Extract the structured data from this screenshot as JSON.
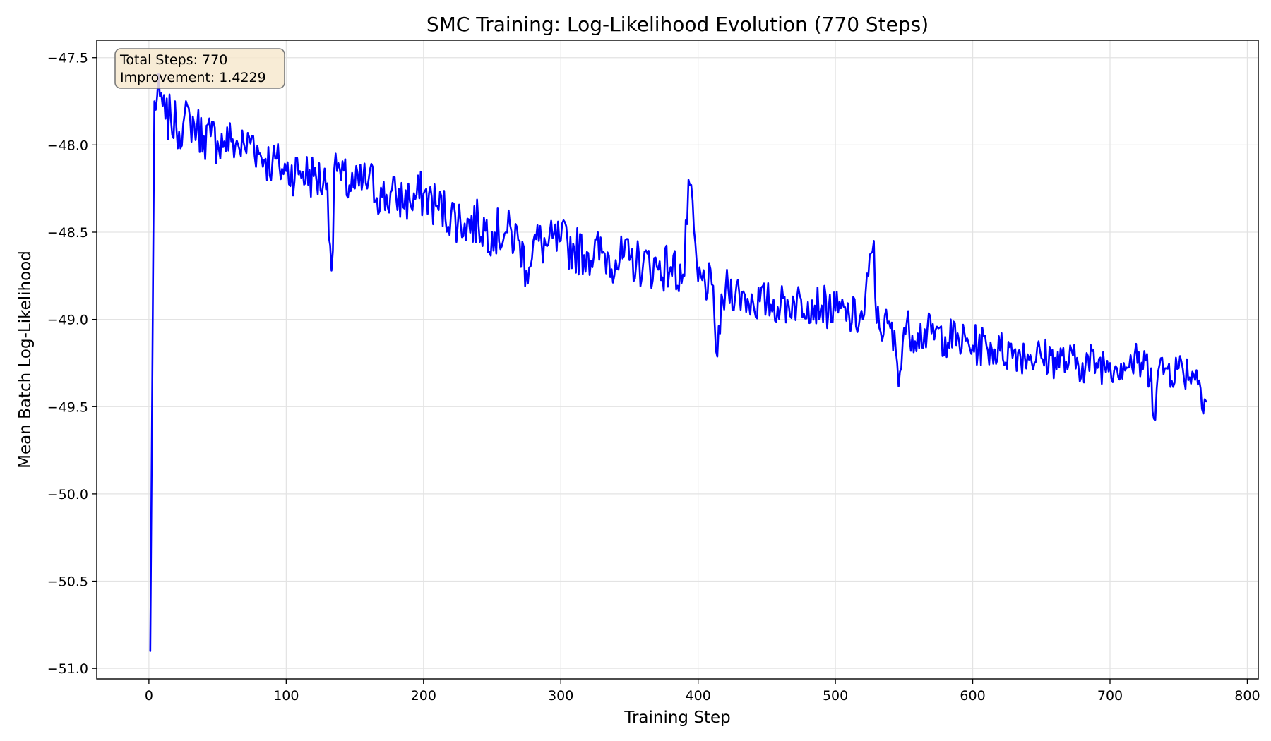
{
  "chart_data": {
    "type": "line",
    "title": "SMC Training: Log-Likelihood Evolution (770 Steps)",
    "xlabel": "Training Step",
    "ylabel": "Mean Batch Log-Likelihood",
    "xlim": [
      -38,
      808
    ],
    "ylim": [
      -51.06,
      -47.4
    ],
    "xticks": [
      0,
      100,
      200,
      300,
      400,
      500,
      600,
      700,
      800
    ],
    "yticks": [
      -51.0,
      -50.5,
      -50.0,
      -49.5,
      -49.0,
      -48.5,
      -48.0,
      -47.5
    ],
    "xtick_labels": [
      "0",
      "100",
      "200",
      "300",
      "400",
      "500",
      "600",
      "700",
      "800"
    ],
    "ytick_labels": [
      "−51.0",
      "−50.5",
      "−50.0",
      "−49.5",
      "−49.0",
      "−48.5",
      "−48.0",
      "−47.5"
    ],
    "grid": true,
    "annotation": {
      "lines": [
        "Total Steps: 770",
        "Improvement: 1.4229"
      ],
      "placement": "top-left",
      "background": "#f7e9cf",
      "border": "#7a7a7a"
    },
    "series": [
      {
        "color": "#0000ff",
        "anchors": {
          "x": [
            1,
            4,
            8,
            12,
            16,
            20,
            25,
            30,
            35,
            40,
            45,
            50,
            55,
            60,
            65,
            70,
            75,
            80,
            85,
            90,
            95,
            100,
            110,
            120,
            130,
            133,
            136,
            140,
            150,
            160,
            170,
            180,
            190,
            200,
            210,
            220,
            230,
            240,
            250,
            260,
            270,
            275,
            280,
            290,
            300,
            310,
            320,
            330,
            340,
            350,
            360,
            370,
            380,
            390,
            393,
            400,
            410,
            413,
            420,
            430,
            440,
            450,
            460,
            470,
            480,
            490,
            500,
            510,
            520,
            528,
            530,
            540,
            547,
            550,
            560,
            570,
            580,
            590,
            600,
            610,
            620,
            630,
            640,
            650,
            660,
            670,
            680,
            690,
            700,
            710,
            720,
            730,
            732,
            735,
            740,
            750,
            760,
            765,
            770
          ],
          "y": [
            -50.9,
            -47.75,
            -47.72,
            -47.85,
            -47.85,
            -47.9,
            -47.88,
            -47.85,
            -47.9,
            -47.95,
            -47.95,
            -47.98,
            -47.98,
            -47.98,
            -48.0,
            -48.02,
            -47.95,
            -48.05,
            -48.08,
            -48.1,
            -48.12,
            -48.15,
            -48.15,
            -48.18,
            -48.22,
            -48.72,
            -48.05,
            -48.2,
            -48.25,
            -48.2,
            -48.3,
            -48.3,
            -48.32,
            -48.28,
            -48.35,
            -48.4,
            -48.45,
            -48.45,
            -48.5,
            -48.5,
            -48.55,
            -48.72,
            -48.55,
            -48.58,
            -48.55,
            -48.6,
            -48.62,
            -48.62,
            -48.66,
            -48.66,
            -48.68,
            -48.7,
            -48.7,
            -48.75,
            -48.2,
            -48.78,
            -48.8,
            -49.18,
            -48.82,
            -48.85,
            -48.9,
            -48.9,
            -48.92,
            -48.9,
            -48.9,
            -48.92,
            -48.95,
            -48.98,
            -49.0,
            -48.55,
            -49.02,
            -49.05,
            -49.3,
            -49.05,
            -49.08,
            -49.08,
            -49.1,
            -49.12,
            -49.15,
            -49.15,
            -49.18,
            -49.18,
            -49.2,
            -49.22,
            -49.22,
            -49.25,
            -49.25,
            -49.25,
            -49.25,
            -49.25,
            -49.25,
            -49.28,
            -49.57,
            -49.3,
            -49.28,
            -49.28,
            -49.3,
            -49.35,
            -49.47
          ]
        },
        "noise": {
          "early_amplitude": 0.14,
          "late_amplitude": 0.12,
          "seed": 7
        }
      }
    ]
  }
}
